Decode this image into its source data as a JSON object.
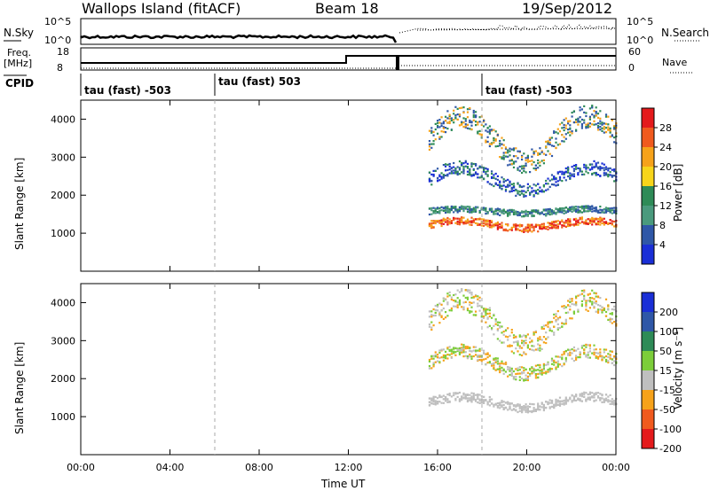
{
  "header": {
    "station": "Wallops Island (fitACF)",
    "beam": "Beam 18",
    "date": "19/Sep/2012"
  },
  "status_panel": {
    "left_labels": {
      "nsky": "N.Sky",
      "freq": "Freq.",
      "freq_unit": "[MHz]",
      "cpid": "CPID"
    },
    "right_labels": {
      "nsearch": "N.Search",
      "nave": "Nave"
    },
    "nsky_ticks": [
      "10^5",
      "10^0"
    ],
    "nsearch_ticks": [
      "10^5",
      "10^0"
    ],
    "freq_ticks": [
      "18",
      "8"
    ],
    "nave_ticks": [
      "60",
      "0"
    ],
    "cpid_segments": [
      {
        "label": "tau (fast) -503",
        "start_hour": 0
      },
      {
        "label": "tau (fast) 503",
        "start_hour": 6
      },
      {
        "label": "tau (fast) -503",
        "start_hour": 18
      }
    ]
  },
  "chart_data": [
    {
      "type": "heatmap",
      "name": "power",
      "ylabel": "Slant Range [km]",
      "xlim_hours": [
        0,
        24
      ],
      "ylim_km": [
        0,
        4500
      ],
      "yticks": [
        1000,
        2000,
        3000,
        4000
      ],
      "colorbar": {
        "label": "Power [dB]",
        "ticks": [
          "28",
          "24",
          "20",
          "16",
          "12",
          "8",
          "4"
        ],
        "colors": [
          "#e41a1c",
          "#f05a1e",
          "#f6a21a",
          "#f7d51b",
          "#2e8b57",
          "#4a9a7d",
          "#2f57a7",
          "#1a2fd6"
        ]
      },
      "scatter_bands": [
        {
          "km": 1250,
          "start_hour": 15.6,
          "end_hour": 24,
          "amp_km": 100,
          "colors": [
            "#e41a1c",
            "#f05a1e",
            "#f6a21a"
          ]
        },
        {
          "km": 1600,
          "start_hour": 15.6,
          "end_hour": 24,
          "amp_km": 60,
          "colors": [
            "#2e8b57",
            "#2f57a7",
            "#4a9a7d"
          ]
        },
        {
          "km": 2450,
          "start_hour": 15.6,
          "end_hour": 24,
          "amp_km": 300,
          "colors": [
            "#2f57a7",
            "#2e8b57",
            "#1a2fd6"
          ]
        },
        {
          "km": 3500,
          "start_hour": 15.6,
          "end_hour": 24,
          "amp_km": 600,
          "colors": [
            "#2f57a7",
            "#2e8b57",
            "#f6a21a"
          ]
        }
      ]
    },
    {
      "type": "heatmap",
      "name": "velocity",
      "ylabel": "Slant Range [km]",
      "xlabel": "Time UT",
      "xlim_hours": [
        0,
        24
      ],
      "ylim_km": [
        0,
        4500
      ],
      "xticks": [
        "00:00",
        "04:00",
        "08:00",
        "12:00",
        "16:00",
        "20:00",
        "00:00"
      ],
      "yticks": [
        1000,
        2000,
        3000,
        4000
      ],
      "colorbar": {
        "label": "Velocity [m s⁻¹]",
        "ticks": [
          "200",
          "100",
          "50",
          "15",
          "-15",
          "-50",
          "-100",
          "-200"
        ],
        "colors": [
          "#1a2fd6",
          "#2f57a7",
          "#2e8b57",
          "#7ccd3a",
          "#bfbfbf",
          "#f6a21a",
          "#f05a1e",
          "#e41a1c"
        ]
      },
      "scatter_bands": [
        {
          "km": 1400,
          "start_hour": 15.6,
          "end_hour": 24,
          "amp_km": 150,
          "colors": [
            "#bfbfbf",
            "#bfbfbf",
            "#bfbfbf"
          ]
        },
        {
          "km": 2450,
          "start_hour": 15.6,
          "end_hour": 24,
          "amp_km": 300,
          "colors": [
            "#bfbfbf",
            "#7ccd3a",
            "#f6a21a"
          ]
        },
        {
          "km": 3500,
          "start_hour": 15.6,
          "end_hour": 24,
          "amp_km": 600,
          "colors": [
            "#bfbfbf",
            "#f6a21a",
            "#7ccd3a"
          ]
        }
      ]
    }
  ]
}
